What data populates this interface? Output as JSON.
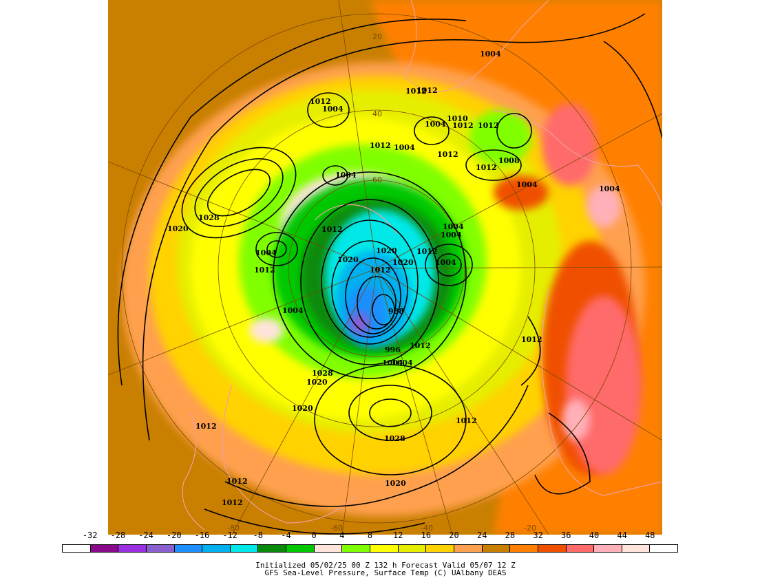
{
  "map": {
    "projection": "polar-stereographic",
    "colors": {
      "frame_bg": "#c97f00",
      "contour": "#000000",
      "coastline": "#f0a0a0",
      "gridline": "#7a4a00"
    },
    "latitude_labels": [
      "20",
      "40",
      "60"
    ],
    "longitude_labels": [
      "-80",
      "-60",
      "-40",
      "-20"
    ],
    "isobar_labels": [
      "1004",
      "1012",
      "1004",
      "1012",
      "1012",
      "1004",
      "1004",
      "1010",
      "1012",
      "1012",
      "1004",
      "1012",
      "1012",
      "1008",
      "1004",
      "1004",
      "1020",
      "1028",
      "1004",
      "1012",
      "1012",
      "1004",
      "1020",
      "1020",
      "1020",
      "1012",
      "1012",
      "1004",
      "1004",
      "988",
      "1004",
      "996",
      "1004",
      "1012",
      "1012",
      "1004",
      "1028",
      "1020",
      "1020",
      "1012",
      "1012",
      "1028",
      "1012",
      "1020",
      "1012",
      "1012"
    ]
  },
  "colorbar": {
    "ticks": [
      "-32",
      "-28",
      "-24",
      "-20",
      "-16",
      "-12",
      "-8",
      "-4",
      "0",
      "4",
      "8",
      "12",
      "16",
      "20",
      "24",
      "28",
      "32",
      "36",
      "40",
      "44",
      "48"
    ],
    "colors": [
      "#ffffff",
      "#8b0a8b",
      "#9b30e0",
      "#8a5fd0",
      "#1e8fff",
      "#00b0f0",
      "#00e8e8",
      "#0a8a0a",
      "#00c800",
      "#ffe4dc",
      "#80ff00",
      "#ffff00",
      "#e6ee00",
      "#ffd200",
      "#ffa050",
      "#c97f00",
      "#ff8000",
      "#f05000",
      "#ff6a6a",
      "#ffb0b8",
      "#ffe4dc",
      "#ffffff"
    ]
  },
  "captions": {
    "line1": "Initialized 05/02/25 00 Z  132 h Forecast Valid 05/07 12 Z",
    "line2": "GFS Sea-Level Pressure, Surface Temp (C)   UAlbany DEAS"
  }
}
